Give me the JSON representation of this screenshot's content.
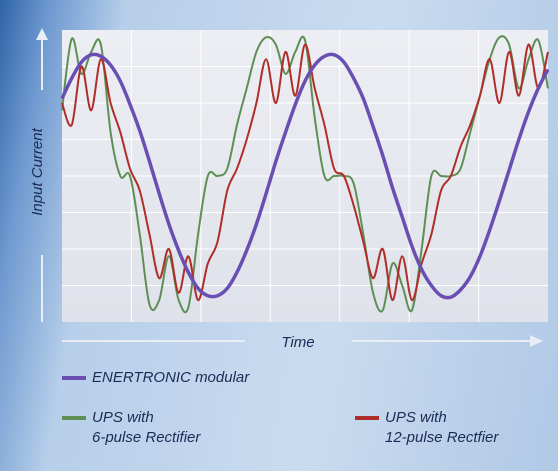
{
  "chart_data": {
    "type": "line",
    "ylabel": "Input Current",
    "xlabel": "Time",
    "xlim": [
      0,
      100
    ],
    "ylim": [
      -1,
      1
    ],
    "grid": true,
    "x": [
      0,
      2,
      4,
      6,
      8,
      10,
      12,
      14,
      16,
      18,
      20,
      22,
      24,
      26,
      28,
      30,
      32,
      34,
      36,
      38,
      40,
      42,
      44,
      46,
      48,
      50,
      52,
      54,
      56,
      58,
      60,
      62,
      64,
      66,
      68,
      70,
      72,
      74,
      76,
      78,
      80,
      82,
      84,
      86,
      88,
      90,
      92,
      94,
      96,
      98,
      100
    ],
    "series": [
      {
        "name": "UPS with\n6-pulse Rectifier",
        "color": "#5e8f55",
        "values": [
          0.45,
          0.94,
          0.7,
          0.85,
          0.9,
          0.3,
          0,
          0,
          -0.4,
          -0.88,
          -0.85,
          -0.55,
          -0.85,
          -0.9,
          -0.4,
          0,
          0,
          0.05,
          0.35,
          0.6,
          0.85,
          0.95,
          0.9,
          0.7,
          0.85,
          0.93,
          0.4,
          0,
          0,
          0,
          -0.05,
          -0.4,
          -0.8,
          -0.92,
          -0.6,
          -0.75,
          -0.92,
          -0.5,
          0,
          0,
          0,
          0.05,
          0.3,
          0.55,
          0.8,
          0.95,
          0.9,
          0.6,
          0.8,
          0.93,
          0.6
        ]
      },
      {
        "name": "UPS with\n12-pulse Rectfier",
        "color": "#b02e2a",
        "values": [
          0.5,
          0.35,
          0.75,
          0.45,
          0.8,
          0.5,
          0.3,
          0.05,
          -0.1,
          -0.4,
          -0.7,
          -0.5,
          -0.8,
          -0.55,
          -0.85,
          -0.6,
          -0.45,
          -0.1,
          0.05,
          0.25,
          0.5,
          0.8,
          0.5,
          0.85,
          0.55,
          0.9,
          0.6,
          0.35,
          0.05,
          0,
          -0.2,
          -0.45,
          -0.7,
          -0.5,
          -0.85,
          -0.55,
          -0.85,
          -0.6,
          -0.4,
          -0.1,
          0,
          0.2,
          0.35,
          0.55,
          0.8,
          0.5,
          0.85,
          0.55,
          0.9,
          0.6,
          0.85
        ]
      },
      {
        "name": "ENERTRONIC modular",
        "color": "#6a4fb3",
        "values": [
          0.53,
          0.67,
          0.78,
          0.83,
          0.82,
          0.76,
          0.65,
          0.49,
          0.31,
          0.1,
          -0.12,
          -0.33,
          -0.51,
          -0.66,
          -0.77,
          -0.82,
          -0.82,
          -0.77,
          -0.66,
          -0.51,
          -0.33,
          -0.12,
          0.1,
          0.3,
          0.49,
          0.65,
          0.76,
          0.82,
          0.83,
          0.78,
          0.67,
          0.53,
          0.34,
          0.14,
          -0.08,
          -0.28,
          -0.48,
          -0.64,
          -0.75,
          -0.82,
          -0.83,
          -0.78,
          -0.69,
          -0.55,
          -0.37,
          -0.17,
          0.04,
          0.25,
          0.44,
          0.6,
          0.73
        ]
      }
    ]
  }
}
